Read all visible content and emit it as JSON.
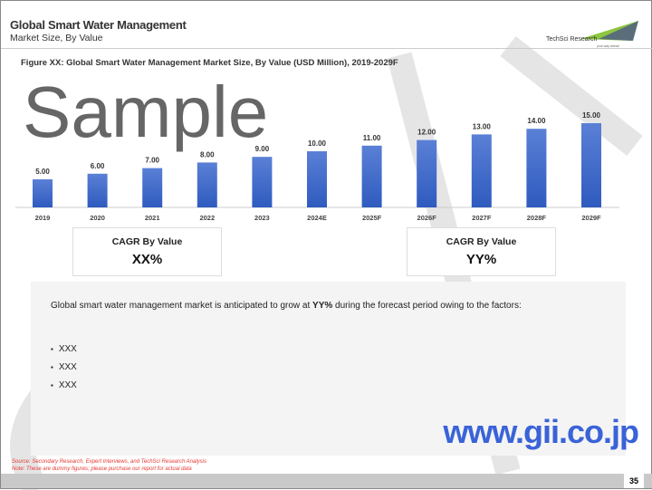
{
  "header": {
    "title": "Global Smart Water Management",
    "subtitle": "Market Size, By Value"
  },
  "logo": {
    "text": "TechSci Research",
    "tagline": "your way ahead"
  },
  "figure_title": "Figure XX: Global Smart Water Management Market Size, By Value (USD Million), 2019-2029F",
  "chart_data": {
    "type": "bar",
    "title": "Figure XX: Global Smart Water Management Market Size, By Value (USD Million), 2019-2029F",
    "categories": [
      "2019",
      "2020",
      "2021",
      "2022",
      "2023",
      "2024E",
      "2025F",
      "2026F",
      "2027F",
      "2028F",
      "2029F"
    ],
    "values": [
      5,
      6,
      7,
      8,
      9,
      10,
      11,
      12,
      13,
      14,
      15
    ],
    "data_labels": [
      "5.00",
      "6.00",
      "7.00",
      "8.00",
      "9.00",
      "10.00",
      "11.00",
      "12.00",
      "13.00",
      "14.00",
      "15.00"
    ],
    "ylim": [
      0,
      15
    ],
    "grid": false,
    "bar_color": "#3a62c4"
  },
  "cagr": [
    {
      "label": "CAGR By Value",
      "value": "XX%"
    },
    {
      "label": "CAGR By Value",
      "value": "YY%"
    }
  ],
  "panel": {
    "text_pre": "Global smart water management market is anticipated to grow at ",
    "text_bold": "YY%",
    "text_post": " during the forecast period owing to the factors:",
    "bullets": [
      "XXX",
      "XXX",
      "XXX"
    ]
  },
  "watermark": {
    "text": "Sample",
    "site": "www.gii.co.jp"
  },
  "source": "Source: Secondary Research, Expert Interviews, and TechSci Research Analysis",
  "note": "Note: These are dummy figures; please purchase our report for actual data",
  "page_number": "35"
}
